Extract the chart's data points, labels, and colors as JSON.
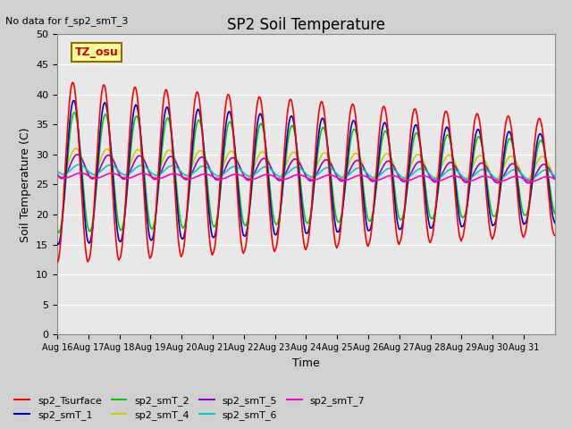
{
  "title": "SP2 Soil Temperature",
  "ylabel": "Soil Temperature (C)",
  "xlabel": "Time",
  "annotation_top": "No data for f_sp2_smT_3",
  "tz_label": "TZ_osu",
  "ylim": [
    0,
    50
  ],
  "yticks": [
    0,
    5,
    10,
    15,
    20,
    25,
    30,
    35,
    40,
    45,
    50
  ],
  "xtick_labels": [
    "Aug 16",
    "Aug 17",
    "Aug 18",
    "Aug 19",
    "Aug 20",
    "Aug 21",
    "Aug 22",
    "Aug 23",
    "Aug 24",
    "Aug 25",
    "Aug 26",
    "Aug 27",
    "Aug 28",
    "Aug 29",
    "Aug 30",
    "Aug 31"
  ],
  "background_color": "#e8e8e8",
  "legend_colors": [
    "#ff0000",
    "#0000cc",
    "#00cc00",
    "#cccc00",
    "#9900cc",
    "#00cccc",
    "#ff00cc"
  ],
  "legend_names": [
    "sp2_Tsurface",
    "sp2_smT_1",
    "sp2_smT_2",
    "sp2_smT_4",
    "sp2_smT_5",
    "sp2_smT_6",
    "sp2_smT_7"
  ]
}
